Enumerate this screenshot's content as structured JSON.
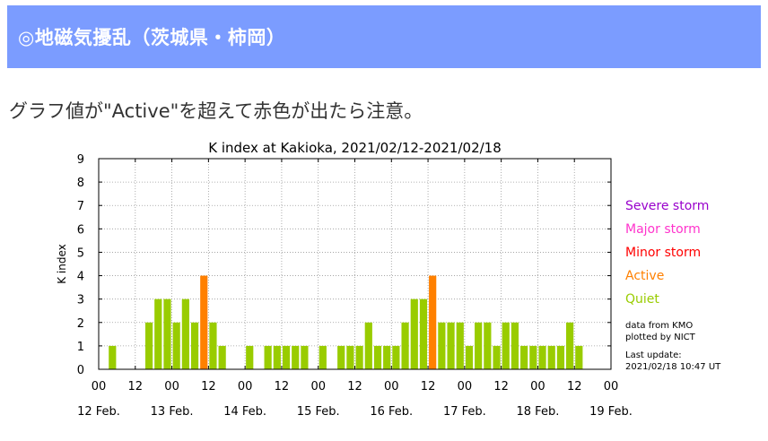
{
  "header": {
    "title": "◎地磁気擾乱（茨城県・柿岡）"
  },
  "note": {
    "text": "グラフ値が\"Active\"を超えて赤色が出たら注意。"
  },
  "colors": {
    "banner": "#7b9cff",
    "quiet": "#99cc00",
    "active": "#ff8000",
    "minor_storm": "#ff0000",
    "major_storm": "#ff33cc",
    "severe_storm": "#9900cc"
  },
  "chart_data": {
    "type": "bar",
    "title": "K index at Kakioka, 2021/02/12-2021/02/18",
    "ylabel": "K index",
    "xlabel": "",
    "ylim": [
      0,
      9
    ],
    "yticks": [
      "0",
      "1",
      "2",
      "3",
      "4",
      "5",
      "6",
      "7",
      "8",
      "9"
    ],
    "grid": true,
    "bins_per_day": 8,
    "xticks": [
      "00",
      "12",
      "00",
      "12",
      "00",
      "12",
      "00",
      "12",
      "00",
      "12",
      "00",
      "12",
      "00",
      "12",
      "00"
    ],
    "day_labels": [
      "12 Feb.",
      "13 Feb.",
      "14 Feb.",
      "15 Feb.",
      "16 Feb.",
      "17 Feb.",
      "18 Feb.",
      "19 Feb."
    ],
    "values": [
      0,
      1,
      0,
      0,
      0,
      2,
      3,
      3,
      2,
      3,
      2,
      4,
      2,
      1,
      0,
      0,
      1,
      0,
      1,
      1,
      1,
      1,
      1,
      0,
      1,
      0,
      1,
      1,
      1,
      2,
      1,
      1,
      1,
      2,
      3,
      3,
      4,
      2,
      2,
      2,
      1,
      2,
      2,
      1,
      2,
      2,
      1,
      1,
      1,
      1,
      1,
      2,
      1,
      0,
      0,
      0
    ],
    "levels": [
      {
        "name": "Severe storm",
        "min": 8
      },
      {
        "name": "Major storm",
        "min": 7
      },
      {
        "name": "Minor storm",
        "min": 5
      },
      {
        "name": "Active",
        "min": 4
      },
      {
        "name": "Quiet",
        "min": 0
      }
    ],
    "legend_placement": "right",
    "annotations": [
      "data from KMO",
      "plotted by NICT",
      "Last update:",
      "2021/02/18 10:47 UT"
    ]
  }
}
